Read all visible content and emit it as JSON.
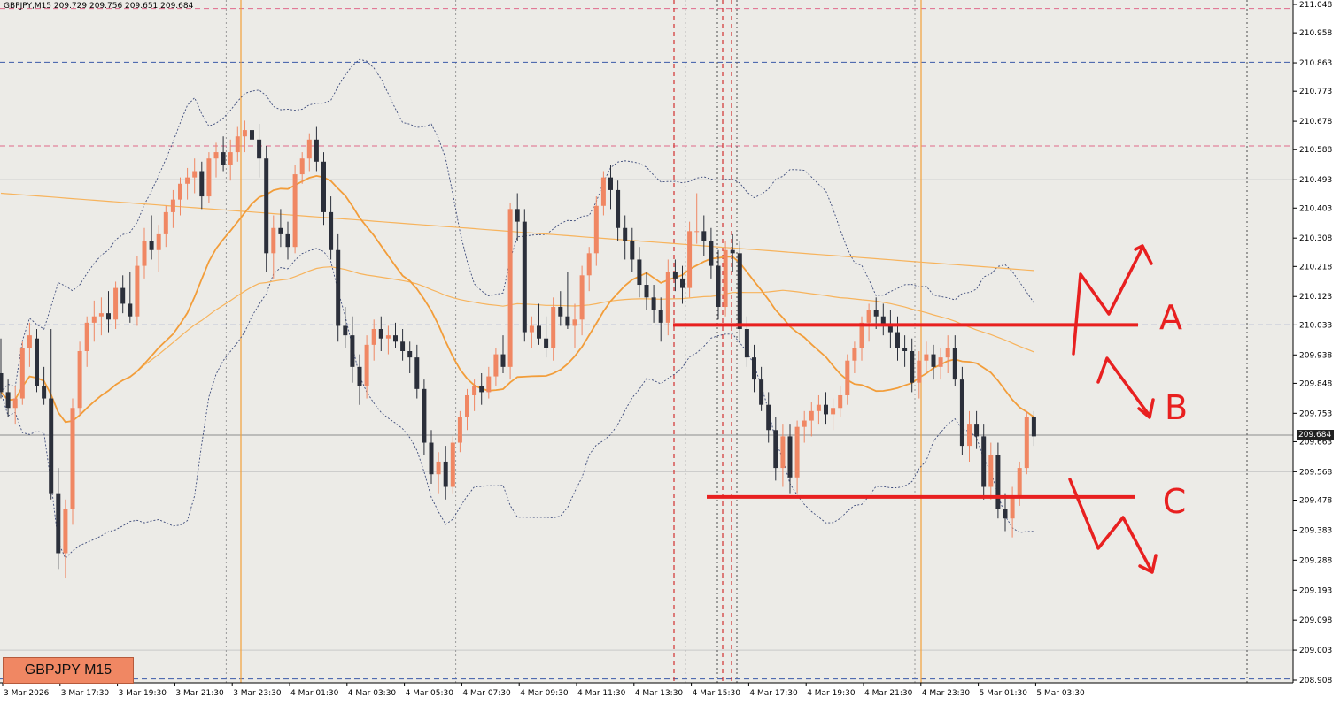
{
  "header": {
    "info_text": "GBPJPY,M15  209.729 209.756 209.651 209.684"
  },
  "badge": {
    "label": "GBPJPY M15"
  },
  "current_price": {
    "label": "209.684",
    "value": 209.684,
    "color": "#222222"
  },
  "colors": {
    "background": "#ecebe7",
    "bull_candle": "#f08763",
    "bear_candle": "#2b2f3a",
    "ma_fast": "#f29d3a",
    "ma_slow": "#f7b35c",
    "bollinger": "#3c4a7a",
    "annotation": "#e82020",
    "vline_session": "#f3a13a",
    "vline_event": "#d23030",
    "hline_blue": "#3b5aa8",
    "hline_pink": "#e06a8a"
  },
  "annotations": {
    "label_a": "A",
    "label_b": "B",
    "label_c": "C"
  },
  "chart_data": {
    "type": "candlestick",
    "symbol": "GBPJPY",
    "timeframe": "M15",
    "ylim": [
      208.908,
      211.048
    ],
    "y_ticks": [
      "211.048",
      "210.958",
      "210.863",
      "210.773",
      "210.678",
      "210.588",
      "210.493",
      "210.403",
      "210.308",
      "210.218",
      "210.123",
      "210.033",
      "209.938",
      "209.848",
      "209.753",
      "209.663",
      "209.568",
      "209.478",
      "209.383",
      "209.288",
      "209.193",
      "209.098",
      "209.003",
      "208.908"
    ],
    "x_ticks": [
      "3 Mar 2026",
      "3 Mar 17:30",
      "3 Mar 19:30",
      "3 Mar 21:30",
      "3 Mar 23:30",
      "4 Mar 01:30",
      "4 Mar 03:30",
      "4 Mar 05:30",
      "4 Mar 07:30",
      "4 Mar 09:30",
      "4 Mar 11:30",
      "4 Mar 13:30",
      "4 Mar 15:30",
      "4 Mar 17:30",
      "4 Mar 19:30",
      "4 Mar 21:30",
      "4 Mar 23:30",
      "5 Mar 01:30",
      "5 Mar 03:30"
    ],
    "bars_per_tick": 8,
    "ohlc": [
      [
        209.88,
        209.99,
        209.8,
        209.82
      ],
      [
        209.82,
        209.86,
        209.74,
        209.77
      ],
      [
        209.77,
        209.84,
        209.72,
        209.8
      ],
      [
        209.8,
        209.98,
        209.78,
        209.96
      ],
      [
        209.96,
        210.04,
        209.9,
        210.0
      ],
      [
        209.99,
        210.02,
        209.82,
        209.84
      ],
      [
        209.84,
        209.9,
        209.78,
        209.8
      ],
      [
        209.8,
        210.02,
        209.48,
        209.5
      ],
      [
        209.5,
        209.58,
        209.26,
        209.31
      ],
      [
        209.31,
        209.48,
        209.23,
        209.45
      ],
      [
        209.45,
        209.8,
        209.4,
        209.77
      ],
      [
        209.77,
        209.98,
        209.75,
        209.95
      ],
      [
        209.95,
        210.06,
        209.9,
        210.04
      ],
      [
        210.04,
        210.11,
        209.98,
        210.06
      ],
      [
        210.06,
        210.12,
        210.0,
        210.07
      ],
      [
        210.07,
        210.14,
        210.01,
        210.05
      ],
      [
        210.05,
        210.17,
        210.02,
        210.15
      ],
      [
        210.15,
        210.19,
        210.07,
        210.1
      ],
      [
        210.1,
        210.2,
        210.04,
        210.06
      ],
      [
        210.06,
        210.25,
        210.03,
        210.22
      ],
      [
        210.22,
        210.34,
        210.18,
        210.3
      ],
      [
        210.3,
        210.38,
        210.24,
        210.27
      ],
      [
        210.27,
        210.35,
        210.2,
        210.32
      ],
      [
        210.32,
        210.41,
        210.28,
        210.39
      ],
      [
        210.39,
        210.46,
        210.34,
        210.43
      ],
      [
        210.43,
        210.5,
        210.38,
        210.48
      ],
      [
        210.48,
        210.53,
        210.43,
        210.5
      ],
      [
        210.5,
        210.56,
        210.45,
        210.52
      ],
      [
        210.52,
        210.55,
        210.4,
        210.44
      ],
      [
        210.44,
        210.58,
        210.42,
        210.56
      ],
      [
        210.56,
        210.61,
        210.5,
        210.58
      ],
      [
        210.58,
        210.63,
        210.52,
        210.54
      ],
      [
        210.54,
        210.62,
        210.49,
        210.58
      ],
      [
        210.58,
        210.66,
        210.55,
        210.63
      ],
      [
        210.63,
        210.68,
        210.58,
        210.65
      ],
      [
        210.65,
        210.69,
        210.6,
        210.62
      ],
      [
        210.62,
        210.67,
        210.5,
        210.56
      ],
      [
        210.56,
        210.6,
        210.2,
        210.26
      ],
      [
        210.26,
        210.38,
        210.18,
        210.34
      ],
      [
        210.34,
        210.4,
        210.28,
        210.32
      ],
      [
        210.32,
        210.36,
        210.24,
        210.28
      ],
      [
        210.28,
        210.54,
        210.26,
        210.51
      ],
      [
        210.51,
        210.58,
        210.48,
        210.56
      ],
      [
        210.56,
        210.64,
        210.52,
        210.62
      ],
      [
        210.62,
        210.66,
        210.52,
        210.55
      ],
      [
        210.55,
        210.58,
        210.35,
        210.39
      ],
      [
        210.39,
        210.44,
        210.24,
        210.27
      ],
      [
        210.27,
        210.32,
        209.98,
        210.03
      ],
      [
        210.03,
        210.09,
        209.96,
        210.0
      ],
      [
        210.0,
        210.06,
        209.85,
        209.9
      ],
      [
        209.9,
        209.94,
        209.78,
        209.84
      ],
      [
        209.84,
        210.0,
        209.8,
        209.97
      ],
      [
        209.97,
        210.05,
        209.92,
        210.02
      ],
      [
        210.02,
        210.06,
        209.95,
        209.99
      ],
      [
        209.99,
        210.03,
        209.94,
        210.0
      ],
      [
        210.0,
        210.04,
        209.96,
        209.98
      ],
      [
        209.98,
        210.02,
        209.92,
        209.95
      ],
      [
        209.95,
        209.98,
        209.88,
        209.93
      ],
      [
        209.93,
        209.97,
        209.8,
        209.83
      ],
      [
        209.83,
        209.86,
        209.62,
        209.66
      ],
      [
        209.66,
        209.7,
        209.53,
        209.56
      ],
      [
        209.56,
        209.63,
        209.5,
        209.6
      ],
      [
        209.6,
        209.65,
        209.48,
        209.52
      ],
      [
        209.52,
        209.68,
        209.5,
        209.66
      ],
      [
        209.66,
        209.76,
        209.63,
        209.74
      ],
      [
        209.74,
        209.83,
        209.7,
        209.81
      ],
      [
        209.81,
        209.86,
        209.76,
        209.84
      ],
      [
        209.84,
        209.88,
        209.78,
        209.82
      ],
      [
        209.82,
        209.9,
        209.8,
        209.87
      ],
      [
        209.87,
        209.96,
        209.84,
        209.94
      ],
      [
        209.94,
        210.0,
        209.88,
        209.9
      ],
      [
        209.9,
        210.42,
        209.86,
        210.4
      ],
      [
        210.4,
        210.45,
        210.3,
        210.36
      ],
      [
        210.36,
        210.4,
        209.98,
        210.01
      ],
      [
        210.01,
        210.06,
        209.96,
        210.03
      ],
      [
        210.03,
        210.1,
        209.97,
        209.99
      ],
      [
        209.99,
        210.06,
        209.93,
        209.96
      ],
      [
        209.96,
        210.12,
        209.92,
        210.09
      ],
      [
        210.09,
        210.14,
        210.03,
        210.06
      ],
      [
        210.06,
        210.2,
        210.02,
        210.03
      ],
      [
        210.03,
        210.1,
        209.96,
        210.05
      ],
      [
        210.05,
        210.22,
        210.0,
        210.19
      ],
      [
        210.19,
        210.28,
        210.14,
        210.26
      ],
      [
        210.26,
        210.44,
        210.22,
        210.41
      ],
      [
        210.41,
        210.52,
        210.38,
        210.5
      ],
      [
        210.5,
        210.54,
        210.4,
        210.46
      ],
      [
        210.46,
        210.49,
        210.3,
        210.34
      ],
      [
        210.34,
        210.38,
        210.24,
        210.3
      ],
      [
        210.3,
        210.34,
        210.2,
        210.24
      ],
      [
        210.24,
        210.28,
        210.12,
        210.16
      ],
      [
        210.16,
        210.2,
        210.08,
        210.12
      ],
      [
        210.12,
        210.16,
        210.04,
        210.08
      ],
      [
        210.08,
        210.12,
        209.98,
        210.04
      ],
      [
        210.04,
        210.24,
        210.0,
        210.2
      ],
      [
        210.2,
        210.24,
        210.14,
        210.18
      ],
      [
        210.18,
        210.22,
        210.1,
        210.15
      ],
      [
        210.15,
        210.36,
        210.12,
        210.33
      ],
      [
        210.33,
        210.45,
        210.29,
        210.33
      ],
      [
        210.33,
        210.38,
        210.25,
        210.3
      ],
      [
        210.3,
        210.34,
        210.18,
        210.22
      ],
      [
        210.22,
        210.27,
        210.05,
        210.09
      ],
      [
        210.09,
        210.3,
        210.06,
        210.27
      ],
      [
        210.27,
        210.32,
        210.2,
        210.26
      ],
      [
        210.26,
        210.3,
        209.98,
        210.02
      ],
      [
        210.02,
        210.06,
        209.9,
        209.93
      ],
      [
        209.93,
        209.97,
        209.82,
        209.86
      ],
      [
        209.86,
        209.9,
        209.76,
        209.78
      ],
      [
        209.78,
        209.82,
        209.66,
        209.7
      ],
      [
        209.7,
        209.74,
        209.54,
        209.58
      ],
      [
        209.58,
        209.72,
        209.52,
        209.68
      ],
      [
        209.68,
        209.72,
        209.5,
        209.55
      ],
      [
        209.55,
        209.73,
        209.5,
        209.71
      ],
      [
        209.71,
        209.76,
        209.66,
        209.73
      ],
      [
        209.73,
        209.79,
        209.68,
        209.76
      ],
      [
        209.76,
        209.81,
        209.72,
        209.78
      ],
      [
        209.78,
        209.82,
        209.72,
        209.75
      ],
      [
        209.75,
        209.8,
        209.7,
        209.77
      ],
      [
        209.77,
        209.84,
        209.74,
        209.81
      ],
      [
        209.81,
        209.94,
        209.78,
        209.92
      ],
      [
        209.92,
        209.98,
        209.88,
        209.96
      ],
      [
        209.96,
        210.06,
        209.92,
        210.04
      ],
      [
        210.04,
        210.1,
        209.98,
        210.08
      ],
      [
        210.08,
        210.12,
        210.02,
        210.06
      ],
      [
        210.06,
        210.1,
        210.0,
        210.03
      ],
      [
        210.03,
        210.08,
        209.96,
        210.01
      ],
      [
        210.01,
        210.06,
        209.92,
        209.96
      ],
      [
        209.96,
        210.0,
        209.9,
        209.95
      ],
      [
        209.95,
        209.99,
        209.82,
        209.85
      ],
      [
        209.85,
        209.95,
        209.8,
        209.92
      ],
      [
        209.92,
        209.98,
        209.88,
        209.94
      ],
      [
        209.94,
        209.97,
        209.86,
        209.9
      ],
      [
        209.9,
        209.96,
        209.86,
        209.93
      ],
      [
        209.93,
        210.0,
        209.88,
        209.96
      ],
      [
        209.96,
        210.0,
        209.84,
        209.86
      ],
      [
        209.86,
        209.9,
        209.62,
        209.65
      ],
      [
        209.65,
        209.76,
        209.6,
        209.72
      ],
      [
        209.72,
        209.76,
        209.64,
        209.68
      ],
      [
        209.68,
        209.72,
        209.48,
        209.52
      ],
      [
        209.52,
        209.66,
        209.48,
        209.62
      ],
      [
        209.62,
        209.66,
        209.42,
        209.45
      ],
      [
        209.45,
        209.5,
        209.38,
        209.42
      ],
      [
        209.42,
        209.52,
        209.36,
        209.49
      ],
      [
        209.49,
        209.6,
        209.46,
        209.58
      ],
      [
        209.58,
        209.76,
        209.56,
        209.74
      ],
      [
        209.74,
        209.76,
        209.65,
        209.68
      ]
    ],
    "indicators": {
      "ma_fast_period": 20,
      "ma_slow_period": 100,
      "ma_long_period": 200,
      "bollinger_period": 20,
      "bollinger_dev": 2
    },
    "horizontal_lines": [
      {
        "price": 211.035,
        "color": "#e06a8a",
        "style": "dashed"
      },
      {
        "price": 210.865,
        "color": "#3b5aa8",
        "style": "dashed"
      },
      {
        "price": 210.6,
        "color": "#e06a8a",
        "style": "dashed"
      },
      {
        "price": 210.033,
        "color": "#3b5aa8",
        "style": "dashed"
      },
      {
        "price": 208.912,
        "color": "#3b5aa8",
        "style": "dashed"
      }
    ],
    "grid": true
  }
}
